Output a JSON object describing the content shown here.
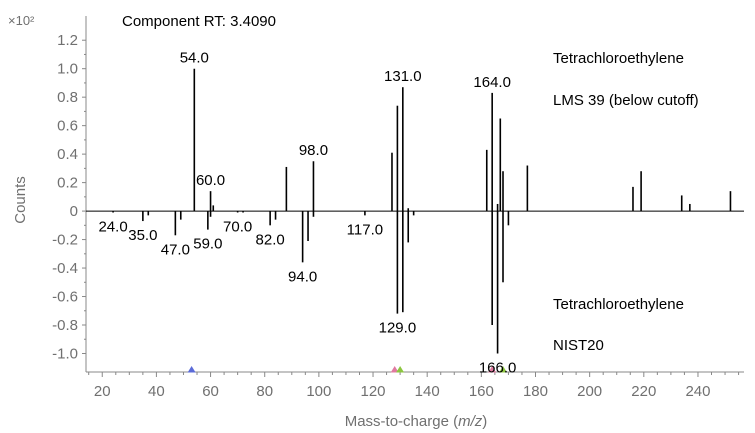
{
  "chart_data": {
    "type": "bar",
    "title": "Component RT: 3.4090",
    "ylabel": "Counts",
    "y_multiplier": "×10²",
    "xlabel_prefix": "Mass-to-charge (",
    "xlabel_italic": "m/z",
    "xlabel_suffix": ")",
    "xlim": [
      14,
      257
    ],
    "ylim": [
      -1.13,
      1.37
    ],
    "x_ticks": [
      20,
      40,
      60,
      80,
      100,
      120,
      140,
      160,
      180,
      200,
      220,
      240
    ],
    "y_ticks": [
      {
        "v": 1.2,
        "t": "1.2"
      },
      {
        "v": 1.0,
        "t": "1.0"
      },
      {
        "v": 0.8,
        "t": "0.8"
      },
      {
        "v": 0.6,
        "t": "0.6"
      },
      {
        "v": 0.4,
        "t": "0.4"
      },
      {
        "v": 0.2,
        "t": "0.2"
      },
      {
        "v": 0,
        "t": "0"
      },
      {
        "v": -0.2,
        "t": "-0.2"
      },
      {
        "v": -0.4,
        "t": "-0.4"
      },
      {
        "v": -0.6,
        "t": "-0.6"
      },
      {
        "v": -0.8,
        "t": "-0.8"
      },
      {
        "v": -1.0,
        "t": "-1.0"
      }
    ],
    "upper_annotations": [
      "Tetrachloroethylene",
      "LMS 39 (below cutoff)"
    ],
    "lower_annotations": [
      "Tetrachloroethylene",
      "NIST20"
    ],
    "series": [
      {
        "name": "Tetrachloroethylene LMS 39 (below cutoff)",
        "points": [
          [
            54,
            1.0
          ],
          [
            60,
            0.14
          ],
          [
            61,
            0.04
          ],
          [
            88,
            0.31
          ],
          [
            98,
            0.35
          ],
          [
            127,
            0.41
          ],
          [
            129,
            0.74
          ],
          [
            131,
            0.87
          ],
          [
            133,
            0.02
          ],
          [
            162,
            0.43
          ],
          [
            164,
            0.83
          ],
          [
            166,
            0.05
          ],
          [
            167,
            0.65
          ],
          [
            168,
            0.28
          ],
          [
            177,
            0.32
          ],
          [
            216,
            0.17
          ],
          [
            219,
            0.28
          ],
          [
            234,
            0.11
          ],
          [
            237,
            0.05
          ],
          [
            252,
            0.14
          ]
        ]
      },
      {
        "name": "Tetrachloroethylene NIST20",
        "points": [
          [
            24,
            -0.01
          ],
          [
            35,
            -0.07
          ],
          [
            37,
            -0.03
          ],
          [
            47,
            -0.17
          ],
          [
            49,
            -0.06
          ],
          [
            59,
            -0.13
          ],
          [
            60,
            -0.04
          ],
          [
            70,
            -0.01
          ],
          [
            72,
            -0.01
          ],
          [
            82,
            -0.1
          ],
          [
            84,
            -0.06
          ],
          [
            94,
            -0.36
          ],
          [
            96,
            -0.21
          ],
          [
            98,
            -0.04
          ],
          [
            117,
            -0.03
          ],
          [
            129,
            -0.72
          ],
          [
            131,
            -0.71
          ],
          [
            133,
            -0.22
          ],
          [
            135,
            -0.03
          ],
          [
            164,
            -0.8
          ],
          [
            166,
            -1.0
          ],
          [
            168,
            -0.5
          ],
          [
            170,
            -0.1
          ]
        ]
      }
    ],
    "peak_labels": [
      {
        "x": 54,
        "text": "54.0",
        "where": "above"
      },
      {
        "x": 60,
        "text": "60.0",
        "where": "above"
      },
      {
        "x": 98,
        "text": "98.0",
        "where": "above"
      },
      {
        "x": 131,
        "text": "131.0",
        "where": "above"
      },
      {
        "x": 164,
        "text": "164.0",
        "where": "above"
      },
      {
        "x": 24,
        "text": "24.0",
        "where": "below"
      },
      {
        "x": 35,
        "text": "35.0",
        "where": "below"
      },
      {
        "x": 47,
        "text": "47.0",
        "where": "below"
      },
      {
        "x": 59,
        "text": "59.0",
        "where": "below"
      },
      {
        "x": 70,
        "text": "70.0",
        "where": "below"
      },
      {
        "x": 82,
        "text": "82.0",
        "where": "below"
      },
      {
        "x": 94,
        "text": "94.0",
        "where": "below"
      },
      {
        "x": 117,
        "text": "117.0",
        "where": "below"
      },
      {
        "x": 129,
        "text": "129.0",
        "where": "below"
      },
      {
        "x": 166,
        "text": "166.0",
        "where": "below"
      }
    ],
    "markers": [
      {
        "x": 53,
        "color": "#5b6bd8"
      },
      {
        "x": 128,
        "color": "#e07aa0"
      },
      {
        "x": 130,
        "color": "#8cc63f"
      },
      {
        "x": 164,
        "color": "#e07aa0"
      },
      {
        "x": 168,
        "color": "#8cc63f"
      }
    ],
    "grid": false,
    "bar_color": "#000000"
  }
}
